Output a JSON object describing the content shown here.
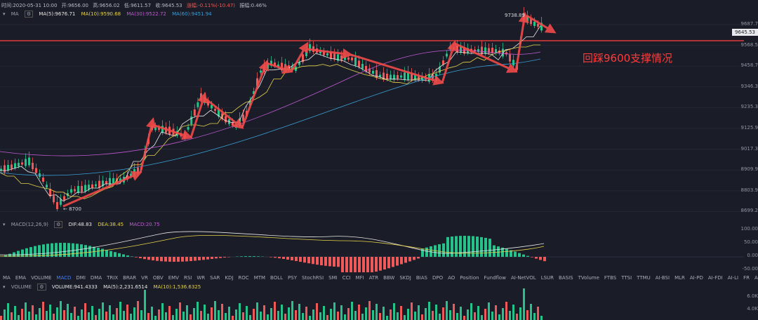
{
  "header": {
    "time": "时间:2020-05-31 10:00",
    "open": "开:9656.00",
    "high": "高:9656.02",
    "low": "低:9611.57",
    "close": "收:9645.53",
    "change": "涨幅:-0.11%(-10.47)",
    "amplitude": "振幅:0.46%"
  },
  "ma_line": {
    "title": "MA",
    "ma5": "MA(5):9676.71",
    "ma10": "MA(10):9590.68",
    "ma30": "MA(30):9522.72",
    "ma60": "MA(60):9451.94"
  },
  "price_axis": [
    "9687.7",
    "9568.5",
    "9458.7",
    "9346.3",
    "9235.3",
    "9125.9",
    "9017.3",
    "8909.9",
    "8803.9",
    "8699.2"
  ],
  "current_price": "9645.53",
  "high_label": "9738.89",
  "low_label": "← 8700",
  "annotation": "回踩9600支撑情况",
  "macd_line": {
    "title": "MACD(12,26,9)",
    "dif": "DIF:48.83",
    "dea": "DEA:38.45",
    "macd": "MACD:20.75"
  },
  "macd_axis": [
    "100.00",
    "50.00",
    "0.00",
    "-50.00"
  ],
  "tabs": [
    "MA",
    "EMA",
    "VOLUME",
    "MACD",
    "DMI",
    "DMA",
    "TRIX",
    "BRAR",
    "VR",
    "OBV",
    "EMV",
    "RSI",
    "WR",
    "SAR",
    "KDJ",
    "ROC",
    "MTM",
    "BOLL",
    "PSY",
    "StochRSI",
    "SMI",
    "CCI",
    "MFI",
    "ATR",
    "BBW",
    "SKDJ",
    "BIAS",
    "DPO",
    "AO",
    "Position",
    "Fundflow",
    "AI-NetVOL",
    "LSUR",
    "BASIS",
    "TVolume",
    "FTBS",
    "TTSI",
    "TTMU",
    "AI-BSI",
    "MLR",
    "AI-PD",
    "AI-FDI",
    "AI-LI",
    "FR",
    "AI-BST"
  ],
  "active_tab": "MACD",
  "volume_line": {
    "title": "VOLUME",
    "vol": "VOLUME:941.4333",
    "ma5": "MA(5):2,231.6514",
    "ma10": "MA(10):1,536.6325"
  },
  "volume_axis": [
    "6.0K",
    "4.0K"
  ],
  "colors": {
    "up": "#26c28a",
    "down": "#ee5a5a",
    "ma5": "#e7e7e7",
    "ma10": "#e6d24b",
    "ma30": "#c25ad6",
    "ma60": "#3aa0d8",
    "annot": "#ff3b3b"
  }
}
